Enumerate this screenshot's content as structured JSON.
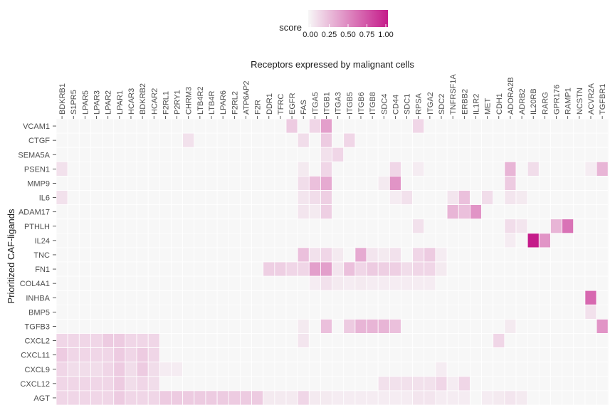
{
  "chart_data": {
    "type": "heatmap",
    "title": "Receptors expressed by malignant cells",
    "xlabel": "Receptors expressed by malignant cells",
    "ylabel": "Prioritized CAF-ligands",
    "legend": {
      "title": "score",
      "placement": "top",
      "ticks": [
        "0.00",
        "0.25",
        "0.50",
        "0.75",
        "1.00"
      ],
      "range": [
        0,
        1
      ],
      "low_color": "#f7f7f7",
      "high_color": "#c51b8a"
    },
    "x": [
      "BDKRB1",
      "S1PR5",
      "LPAR5",
      "LPAR3",
      "LPAR2",
      "LPAR1",
      "HCAR3",
      "BDKRB2",
      "HCAR2",
      "F2RL1",
      "P2RY1",
      "CHRM3",
      "LTB4R2",
      "LTB4R",
      "LPAR6",
      "F2RL2",
      "ATP6AP2",
      "F2R",
      "DDR1",
      "TFRC",
      "EGFR",
      "FAS",
      "ITGA5",
      "ITGB1",
      "ITGA3",
      "ITGB5",
      "ITGB6",
      "ITGB8",
      "SDC4",
      "CD44",
      "SDC1",
      "RPSA",
      "ITGA2",
      "SDC2",
      "TNFRSF1A",
      "ERBB2",
      "IL1R2",
      "MET",
      "CDH1",
      "ADORA2B",
      "ADRB2",
      "IL20RB",
      "RARG",
      "GPR176",
      "RAMP1",
      "NCSTN",
      "ACVR2A",
      "TGFBR1"
    ],
    "y": [
      "VCAM1",
      "CTGF",
      "SEMA5A",
      "PSEN1",
      "MMP9",
      "IL6",
      "ADAM17",
      "PTHLH",
      "IL24",
      "TNC",
      "FN1",
      "COL4A1",
      "INHBA",
      "BMP5",
      "TGFB3",
      "CXCL2",
      "CXCL11",
      "CXCL9",
      "CXCL12",
      "AGT"
    ],
    "values": [
      [
        0,
        0,
        0,
        0,
        0,
        0,
        0,
        0,
        0,
        0,
        0,
        0,
        0,
        0,
        0,
        0,
        0,
        0,
        0,
        0,
        0.2,
        0,
        0.15,
        0.4,
        0,
        0,
        0,
        0,
        0,
        0,
        0,
        0.15,
        0,
        0,
        0,
        0,
        0,
        0,
        0,
        0,
        0,
        0,
        0,
        0,
        0,
        0,
        0,
        0
      ],
      [
        0,
        0,
        0,
        0,
        0,
        0,
        0,
        0,
        0,
        0,
        0,
        0.1,
        0,
        0,
        0,
        0,
        0,
        0,
        0,
        0,
        0,
        0.12,
        0,
        0.2,
        0,
        0.15,
        0,
        0,
        0,
        0,
        0,
        0,
        0,
        0,
        0,
        0,
        0,
        0,
        0,
        0,
        0,
        0,
        0,
        0,
        0,
        0,
        0,
        0
      ],
      [
        0,
        0,
        0,
        0,
        0,
        0,
        0,
        0,
        0,
        0,
        0,
        0,
        0,
        0,
        0,
        0,
        0,
        0,
        0,
        0,
        0,
        0,
        0,
        0.1,
        0.15,
        0,
        0,
        0,
        0,
        0,
        0,
        0,
        0,
        0,
        0,
        0,
        0,
        0,
        0,
        0,
        0,
        0,
        0,
        0,
        0,
        0,
        0,
        0
      ],
      [
        0.1,
        0,
        0,
        0,
        0,
        0,
        0,
        0,
        0,
        0,
        0,
        0,
        0,
        0,
        0,
        0,
        0,
        0,
        0,
        0,
        0,
        0.06,
        0,
        0.15,
        0,
        0,
        0,
        0,
        0,
        0.15,
        0,
        0.05,
        0,
        0,
        0,
        0,
        0,
        0,
        0,
        0.3,
        0,
        0.12,
        0,
        0,
        0,
        0,
        0.05,
        0.3
      ],
      [
        0,
        0,
        0,
        0,
        0,
        0,
        0,
        0,
        0,
        0,
        0,
        0,
        0,
        0,
        0,
        0,
        0,
        0,
        0,
        0,
        0,
        0.12,
        0.25,
        0.35,
        0,
        0,
        0,
        0,
        0.06,
        0.45,
        0,
        0,
        0,
        0,
        0,
        0,
        0,
        0,
        0,
        0.2,
        0,
        0,
        0,
        0,
        0,
        0,
        0,
        0
      ],
      [
        0.1,
        0,
        0,
        0,
        0,
        0,
        0,
        0,
        0,
        0,
        0,
        0,
        0,
        0,
        0,
        0,
        0,
        0,
        0,
        0,
        0,
        0.08,
        0.12,
        0.18,
        0,
        0,
        0,
        0,
        0,
        0.05,
        0.1,
        0,
        0,
        0,
        0.08,
        0.25,
        0,
        0.12,
        0,
        0.08,
        0.06,
        0,
        0,
        0,
        0,
        0,
        0,
        0
      ],
      [
        0,
        0,
        0,
        0,
        0,
        0,
        0,
        0,
        0,
        0,
        0,
        0,
        0,
        0,
        0,
        0,
        0,
        0,
        0,
        0,
        0,
        0.08,
        0.06,
        0.18,
        0,
        0,
        0,
        0,
        0,
        0,
        0,
        0,
        0,
        0,
        0.3,
        0.25,
        0.45,
        0,
        0,
        0,
        0,
        0,
        0,
        0,
        0,
        0,
        0,
        0
      ],
      [
        0,
        0,
        0,
        0,
        0,
        0,
        0,
        0,
        0,
        0,
        0,
        0,
        0,
        0,
        0,
        0,
        0,
        0,
        0,
        0,
        0,
        0,
        0,
        0,
        0,
        0,
        0,
        0,
        0,
        0,
        0,
        0.1,
        0,
        0,
        0,
        0,
        0,
        0,
        0,
        0.12,
        0.08,
        0,
        0,
        0.3,
        0.6,
        0,
        0,
        0
      ],
      [
        0,
        0,
        0,
        0,
        0,
        0,
        0,
        0,
        0,
        0,
        0,
        0,
        0,
        0,
        0,
        0,
        0,
        0,
        0,
        0,
        0,
        0,
        0,
        0,
        0,
        0,
        0,
        0,
        0,
        0,
        0,
        0,
        0,
        0,
        0,
        0,
        0,
        0,
        0,
        0.05,
        0,
        1.0,
        0.45,
        0,
        0,
        0,
        0,
        0
      ],
      [
        0,
        0,
        0,
        0,
        0,
        0,
        0,
        0,
        0,
        0,
        0,
        0,
        0,
        0,
        0,
        0,
        0,
        0,
        0,
        0,
        0,
        0.25,
        0.1,
        0.15,
        0.06,
        0,
        0.35,
        0.08,
        0.06,
        0.1,
        0,
        0.15,
        0.2,
        0.05,
        0,
        0,
        0,
        0,
        0,
        0,
        0,
        0,
        0,
        0,
        0,
        0,
        0,
        0
      ],
      [
        0,
        0,
        0,
        0,
        0,
        0,
        0,
        0,
        0,
        0,
        0,
        0,
        0,
        0,
        0,
        0,
        0,
        0,
        0.18,
        0.18,
        0.15,
        0.15,
        0.4,
        0.4,
        0.08,
        0.25,
        0.15,
        0.2,
        0.18,
        0.18,
        0.12,
        0.15,
        0.15,
        0.06,
        0,
        0,
        0,
        0,
        0,
        0,
        0,
        0,
        0,
        0,
        0,
        0,
        0,
        0
      ],
      [
        0,
        0,
        0,
        0,
        0,
        0,
        0,
        0,
        0,
        0,
        0,
        0,
        0,
        0,
        0,
        0,
        0,
        0,
        0,
        0,
        0,
        0,
        0.05,
        0.1,
        0.06,
        0.05,
        0.06,
        0.05,
        0.05,
        0.05,
        0.05,
        0.05,
        0.05,
        0,
        0,
        0,
        0,
        0,
        0,
        0,
        0,
        0,
        0,
        0,
        0,
        0,
        0,
        0
      ],
      [
        0,
        0,
        0,
        0,
        0,
        0,
        0,
        0,
        0,
        0,
        0,
        0,
        0,
        0,
        0,
        0,
        0,
        0,
        0,
        0,
        0,
        0,
        0,
        0,
        0,
        0,
        0,
        0,
        0,
        0,
        0,
        0,
        0,
        0,
        0,
        0,
        0,
        0,
        0,
        0,
        0,
        0,
        0,
        0,
        0,
        0,
        0.65,
        0
      ],
      [
        0,
        0,
        0,
        0,
        0,
        0,
        0,
        0,
        0,
        0,
        0,
        0,
        0,
        0,
        0,
        0,
        0,
        0,
        0,
        0,
        0,
        0,
        0,
        0,
        0,
        0,
        0,
        0,
        0,
        0,
        0,
        0,
        0,
        0,
        0,
        0,
        0,
        0,
        0,
        0,
        0,
        0,
        0,
        0,
        0,
        0,
        0.1,
        0
      ],
      [
        0,
        0,
        0,
        0,
        0,
        0,
        0,
        0,
        0,
        0,
        0,
        0,
        0,
        0,
        0,
        0,
        0,
        0,
        0,
        0,
        0,
        0.06,
        0,
        0.25,
        0,
        0.2,
        0.3,
        0.3,
        0.3,
        0.25,
        0,
        0,
        0,
        0,
        0,
        0,
        0,
        0,
        0,
        0.06,
        0,
        0,
        0,
        0,
        0,
        0,
        0,
        0.45
      ],
      [
        0.15,
        0.15,
        0.15,
        0.15,
        0.2,
        0.2,
        0.15,
        0.15,
        0.15,
        0,
        0,
        0,
        0,
        0,
        0,
        0,
        0,
        0,
        0,
        0,
        0,
        0.08,
        0,
        0,
        0,
        0,
        0,
        0,
        0,
        0,
        0,
        0,
        0,
        0,
        0,
        0,
        0,
        0,
        0.15,
        0,
        0,
        0,
        0,
        0,
        0,
        0,
        0,
        0
      ],
      [
        0.2,
        0.15,
        0.15,
        0.15,
        0.15,
        0.2,
        0.15,
        0.2,
        0.15,
        0,
        0,
        0,
        0,
        0,
        0,
        0,
        0,
        0,
        0,
        0,
        0,
        0,
        0,
        0,
        0,
        0,
        0,
        0,
        0,
        0,
        0,
        0,
        0,
        0,
        0,
        0,
        0,
        0,
        0,
        0,
        0,
        0,
        0,
        0,
        0,
        0,
        0,
        0
      ],
      [
        0.15,
        0.12,
        0.12,
        0.12,
        0.15,
        0.2,
        0.12,
        0.2,
        0.12,
        0.05,
        0.05,
        0,
        0,
        0,
        0,
        0,
        0,
        0,
        0,
        0,
        0,
        0,
        0,
        0,
        0,
        0,
        0,
        0,
        0,
        0,
        0,
        0,
        0,
        0.05,
        0,
        0,
        0,
        0,
        0,
        0,
        0,
        0,
        0,
        0,
        0,
        0,
        0,
        0
      ],
      [
        0.15,
        0.15,
        0.15,
        0.15,
        0.15,
        0.2,
        0.12,
        0.15,
        0.12,
        0,
        0,
        0,
        0,
        0,
        0,
        0,
        0,
        0,
        0,
        0,
        0,
        0,
        0,
        0,
        0,
        0,
        0,
        0,
        0.1,
        0.1,
        0.1,
        0.1,
        0.1,
        0.15,
        0.05,
        0.15,
        0,
        0,
        0,
        0,
        0,
        0,
        0,
        0,
        0,
        0,
        0,
        0
      ],
      [
        0.15,
        0.15,
        0.15,
        0.15,
        0.15,
        0.2,
        0.15,
        0.15,
        0.15,
        0.2,
        0.2,
        0.2,
        0.2,
        0.2,
        0.2,
        0.2,
        0.2,
        0.2,
        0.06,
        0.06,
        0.06,
        0.15,
        0.06,
        0.06,
        0.05,
        0.05,
        0.05,
        0.05,
        0.05,
        0.05,
        0.05,
        0.08,
        0.08,
        0.05,
        0.05,
        0.05,
        0,
        0.05,
        0.06,
        0.08,
        0.06,
        0,
        0,
        0,
        0,
        0,
        0,
        0
      ]
    ]
  }
}
